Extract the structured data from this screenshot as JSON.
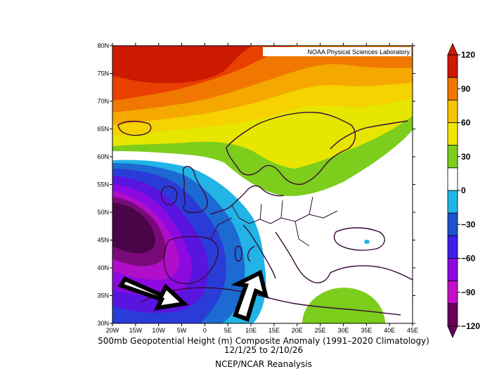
{
  "credit": "NOAA Physical Sciences Laboratory",
  "caption": {
    "line1": "500mb Geopotential Height (m) Composite Anomaly (1991–2020 Climatology)",
    "line2": "12/1/25  to 2/10/26",
    "line3": "NCEP/NCAR Reanalysis"
  },
  "axes": {
    "lat_labels": [
      "80N",
      "75N",
      "70N",
      "65N",
      "60N",
      "55N",
      "50N",
      "45N",
      "40N",
      "35N",
      "30N"
    ],
    "lon_labels": [
      "20W",
      "15W",
      "10W",
      "5W",
      "0",
      "5E",
      "10E",
      "15E",
      "20E",
      "25E",
      "30E",
      "35E",
      "40E",
      "45E"
    ]
  },
  "colorbar": {
    "labels": [
      "120",
      "90",
      "60",
      "30",
      "0",
      "−30",
      "−60",
      "−90",
      "−120"
    ],
    "colors": [
      "#cc1a00",
      "#f07800",
      "#f5c400",
      "#f2e600",
      "#7ccd1c",
      "#ffffff",
      "#22b4e6",
      "#1c50cc",
      "#3c1ee8",
      "#8c0ae0",
      "#c40fc4",
      "#68005a"
    ]
  },
  "map": {
    "lon_range": [
      -20,
      45
    ],
    "lat_range": [
      30,
      80
    ],
    "anomaly_colors": {
      "pos_110": "#cc1a00",
      "pos_90": "#e84000",
      "pos_75": "#f07800",
      "pos_60": "#f5a800",
      "pos_45": "#f5d200",
      "pos_30": "#e6e600",
      "pos_15": "#7ccd1c",
      "neg_15": "#22b4e6",
      "neg_30": "#1c6ad2",
      "neg_45": "#2a3cd8",
      "neg_60": "#5a14e0",
      "neg_75": "#8c0ae0",
      "neg_90": "#b00ec8",
      "neg_105": "#7a0a7a",
      "neg_120": "#4a0548"
    },
    "coast_color": "#3a0a3a",
    "arrow_color": "#000000"
  }
}
